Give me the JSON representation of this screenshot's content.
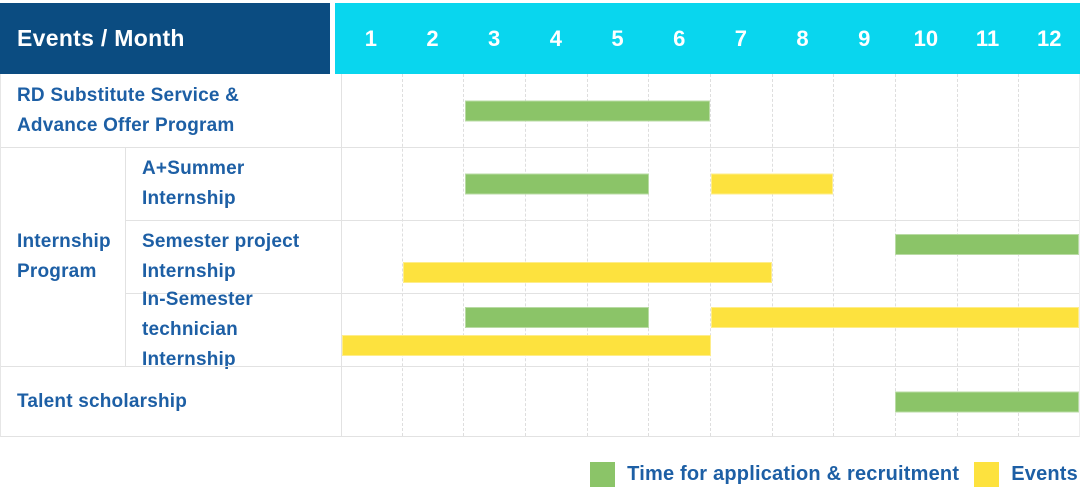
{
  "colors": {
    "header_bg": "#0b4c81",
    "months_bg": "#09d6ee",
    "label_text": "#1d5fa5",
    "bar_recruitment": "#8bc468",
    "bar_events": "#fde23e",
    "grid_line": "#e2e2e2"
  },
  "chart_data": {
    "type": "bar",
    "subtype": "gantt-range",
    "title": "Events / Month",
    "x_categories": [
      "1",
      "2",
      "3",
      "4",
      "5",
      "6",
      "7",
      "8",
      "9",
      "10",
      "11",
      "12"
    ],
    "x_range": [
      1,
      12
    ],
    "grid": "dashed-vertical",
    "group_label": "Internship Program",
    "rows": [
      {
        "label": "RD Substitute Service & Advance Offer Program",
        "lines": [
          "RD Substitute Service &",
          "Advance Offer Program"
        ],
        "in_group": false,
        "bars": [
          {
            "type": "recruitment",
            "start_month": 3,
            "end_month": 6,
            "line": "center"
          }
        ]
      },
      {
        "label": "A+Summer Internship",
        "lines": [
          "A+Summer",
          "Internship"
        ],
        "in_group": true,
        "bars": [
          {
            "type": "recruitment",
            "start_month": 3,
            "end_month": 5,
            "line": "center"
          },
          {
            "type": "events",
            "start_month": 7,
            "end_month": 8,
            "line": "center"
          }
        ]
      },
      {
        "label": "Semester project Internship",
        "lines": [
          "Semester project",
          "Internship"
        ],
        "in_group": true,
        "bars": [
          {
            "type": "recruitment",
            "start_month": 10,
            "end_month": 12,
            "line": "top"
          },
          {
            "type": "events",
            "start_month": 2,
            "end_month": 7,
            "line": "bottom"
          }
        ]
      },
      {
        "label": "In-Semester technician Internship",
        "lines": [
          "In-Semester",
          "technician Internship"
        ],
        "in_group": true,
        "bars": [
          {
            "type": "recruitment",
            "start_month": 3,
            "end_month": 5,
            "line": "top"
          },
          {
            "type": "events",
            "start_month": 7,
            "end_month": 12,
            "line": "top"
          },
          {
            "type": "events",
            "start_month": 1,
            "end_month": 6,
            "line": "bottom"
          }
        ]
      },
      {
        "label": "Talent scholarship",
        "lines": [
          "Talent scholarship"
        ],
        "in_group": false,
        "bars": [
          {
            "type": "recruitment",
            "start_month": 10,
            "end_month": 12,
            "line": "center"
          }
        ]
      }
    ],
    "legend": [
      {
        "key": "recruitment",
        "label": "Time for application & recruitment",
        "color": "#8bc468"
      },
      {
        "key": "events",
        "label": "Events",
        "color": "#fde23e"
      }
    ],
    "legend_position": "bottom-right"
  }
}
